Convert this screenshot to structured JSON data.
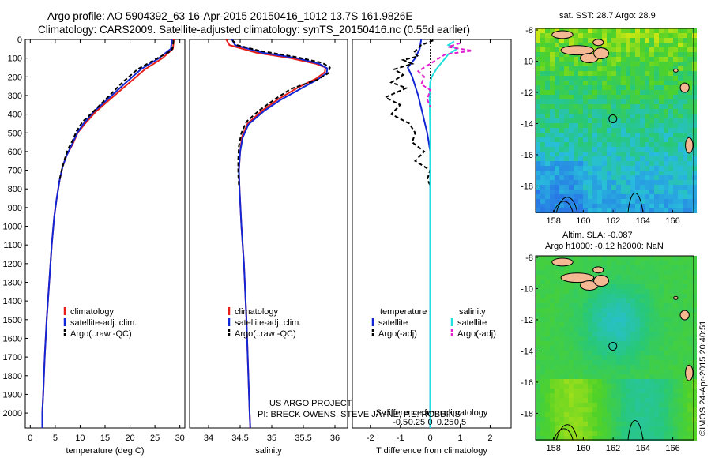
{
  "header": {
    "line1": "Argo profile: AO 5904392_63 16-Apr-2015 20150416_1012 13.7S 161.9826E",
    "line2": "Climatology: CARS2009. Satellite-adjusted climatology: synTS_20150416.nc (0.55d earlier)"
  },
  "colors": {
    "climatology": "#e8201a",
    "satellite": "#1226d6",
    "argo": "#000000",
    "satellite_diff": "#20e0e0",
    "argo_diff": "#e020d0"
  },
  "chart_data": [
    {
      "type": "line",
      "xlabel": "temperature (deg C)",
      "ylabel": "",
      "xlim": [
        -1,
        31
      ],
      "ylim": [
        2080,
        0
      ],
      "xticks": [
        0,
        5,
        10,
        15,
        20,
        25,
        30
      ],
      "yticks": [
        0,
        100,
        200,
        300,
        400,
        500,
        600,
        700,
        800,
        900,
        1000,
        1100,
        1200,
        1300,
        1400,
        1500,
        1600,
        1700,
        1800,
        1900,
        2000
      ],
      "legend": [
        "climatology",
        "satellite-adj. clim.",
        "Argo(..raw -QC)"
      ],
      "legend_position": "bottom-left",
      "series": [
        {
          "name": "climatology",
          "points": [
            [
              28.8,
              0
            ],
            [
              28.6,
              50
            ],
            [
              26.5,
              100
            ],
            [
              23,
              160
            ],
            [
              19.5,
              240
            ],
            [
              16,
              320
            ],
            [
              13,
              390
            ],
            [
              11,
              450
            ],
            [
              9.5,
              500
            ],
            [
              8.5,
              560
            ],
            [
              7.3,
              620
            ],
            [
              6.5,
              680
            ],
            [
              5.9,
              750
            ],
            [
              5.3,
              850
            ],
            [
              4.8,
              950
            ],
            [
              4.3,
              1100
            ],
            [
              3.8,
              1300
            ],
            [
              3.3,
              1500
            ],
            [
              2.9,
              1700
            ],
            [
              2.6,
              1900
            ],
            [
              2.4,
              2000
            ],
            [
              2.4,
              2080
            ]
          ]
        },
        {
          "name": "satellite-adj. clim.",
          "points": [
            [
              28.4,
              0
            ],
            [
              28.2,
              50
            ],
            [
              25.8,
              100
            ],
            [
              22.2,
              160
            ],
            [
              18.8,
              240
            ],
            [
              15.5,
              320
            ],
            [
              12.6,
              390
            ],
            [
              10.7,
              450
            ],
            [
              9.4,
              500
            ],
            [
              8.4,
              560
            ],
            [
              7.3,
              620
            ],
            [
              6.5,
              680
            ],
            [
              5.9,
              750
            ],
            [
              5.3,
              850
            ],
            [
              4.8,
              950
            ],
            [
              4.3,
              1100
            ],
            [
              3.8,
              1300
            ],
            [
              3.3,
              1500
            ],
            [
              2.9,
              1700
            ],
            [
              2.6,
              1900
            ],
            [
              2.4,
              2000
            ],
            [
              2.4,
              2080
            ]
          ]
        },
        {
          "name": "Argo(..raw -QC)",
          "points": [
            [
              28.7,
              5
            ],
            [
              28.6,
              40
            ],
            [
              28.3,
              60
            ],
            [
              25.5,
              100
            ],
            [
              21.5,
              160
            ],
            [
              18.5,
              230
            ],
            [
              15.5,
              310
            ],
            [
              12.5,
              390
            ],
            [
              10.5,
              440
            ],
            [
              9.3,
              490
            ],
            [
              8.5,
              540
            ],
            [
              7.5,
              590
            ],
            [
              6.9,
              640
            ],
            [
              6.3,
              700
            ],
            [
              5.8,
              760
            ]
          ]
        }
      ]
    },
    {
      "type": "line",
      "xlabel": "salinity",
      "ylabel": "",
      "xlim": [
        33.7,
        36.2
      ],
      "ylim": [
        2080,
        0
      ],
      "xticks": [
        34,
        34.5,
        35,
        35.5,
        36
      ],
      "legend": [
        "climatology",
        "satellite-adj. clim.",
        "Argo(..raw -QC)"
      ],
      "legend_position": "bottom-left",
      "annotations": [
        "US ARGO PROJECT",
        "PI: BRECK OWENS, STEVE JAYNE, P.E. ROBBINS"
      ],
      "series": [
        {
          "name": "climatology",
          "points": [
            [
              34.28,
              0
            ],
            [
              34.33,
              30
            ],
            [
              34.75,
              70
            ],
            [
              35.3,
              100
            ],
            [
              35.7,
              130
            ],
            [
              35.85,
              150
            ],
            [
              35.84,
              175
            ],
            [
              35.7,
              210
            ],
            [
              35.4,
              260
            ],
            [
              35.1,
              320
            ],
            [
              34.85,
              380
            ],
            [
              34.62,
              450
            ],
            [
              34.53,
              520
            ],
            [
              34.5,
              600
            ],
            [
              34.48,
              700
            ],
            [
              34.49,
              800
            ],
            [
              34.52,
              1000
            ],
            [
              34.56,
              1200
            ],
            [
              34.6,
              1500
            ],
            [
              34.63,
              1800
            ],
            [
              34.65,
              2000
            ],
            [
              34.66,
              2080
            ]
          ]
        },
        {
          "name": "satellite-adj. clim.",
          "points": [
            [
              34.37,
              0
            ],
            [
              34.42,
              30
            ],
            [
              34.85,
              70
            ],
            [
              35.4,
              100
            ],
            [
              35.75,
              130
            ],
            [
              35.88,
              155
            ],
            [
              35.87,
              180
            ],
            [
              35.72,
              215
            ],
            [
              35.45,
              265
            ],
            [
              35.13,
              325
            ],
            [
              34.87,
              385
            ],
            [
              34.63,
              455
            ],
            [
              34.54,
              525
            ],
            [
              34.5,
              600
            ],
            [
              34.48,
              700
            ],
            [
              34.49,
              800
            ],
            [
              34.52,
              1000
            ],
            [
              34.56,
              1200
            ],
            [
              34.6,
              1500
            ],
            [
              34.63,
              1800
            ],
            [
              34.65,
              2000
            ],
            [
              34.66,
              2080
            ]
          ]
        },
        {
          "name": "Argo(..raw -QC)",
          "points": [
            [
              34.38,
              5
            ],
            [
              34.45,
              30
            ],
            [
              34.8,
              60
            ],
            [
              35.4,
              95
            ],
            [
              35.8,
              125
            ],
            [
              35.92,
              150
            ],
            [
              35.9,
              180
            ],
            [
              35.72,
              215
            ],
            [
              35.3,
              265
            ],
            [
              35.05,
              320
            ],
            [
              34.8,
              380
            ],
            [
              34.6,
              440
            ],
            [
              34.52,
              500
            ],
            [
              34.48,
              570
            ],
            [
              34.47,
              640
            ],
            [
              34.47,
              720
            ],
            [
              34.48,
              780
            ]
          ]
        }
      ]
    },
    {
      "type": "line",
      "xlabel": "T difference from climatology",
      "ylabel": "",
      "xlim": [
        -2.6,
        2.7
      ],
      "ylim": [
        2080,
        0
      ],
      "xticks": [
        -2,
        -1,
        0,
        1,
        2
      ],
      "secondary_xlabel": "S difference from climatology",
      "secondary_xticks": [
        -0.5,
        -0.25,
        0,
        0.25,
        0.5
      ],
      "legend_temperature": [
        "temperature",
        "satellite",
        "Argo(-adj)"
      ],
      "legend_salinity": [
        "salinity",
        "satellite",
        "Argo(-adj)"
      ],
      "legend_position": "bottom-left",
      "zero_line": true,
      "series": [
        {
          "name": "satellite",
          "points": [
            [
              -0.3,
              0
            ],
            [
              -0.35,
              50
            ],
            [
              -0.5,
              100
            ],
            [
              -0.75,
              150
            ],
            [
              -0.6,
              200
            ],
            [
              -0.4,
              300
            ],
            [
              -0.25,
              400
            ],
            [
              -0.1,
              500
            ],
            [
              0,
              600
            ],
            [
              0,
              800
            ],
            [
              0,
              2080
            ]
          ]
        },
        {
          "name": "Argo(-adj)",
          "points": [
            [
              0.1,
              5
            ],
            [
              -0.3,
              30
            ],
            [
              -0.55,
              70
            ],
            [
              -0.4,
              90
            ],
            [
              -0.9,
              110
            ],
            [
              -0.6,
              130
            ],
            [
              -1.2,
              160
            ],
            [
              -0.9,
              190
            ],
            [
              -1.3,
              230
            ],
            [
              -0.8,
              260
            ],
            [
              -1.5,
              310
            ],
            [
              -1.0,
              350
            ],
            [
              -1.3,
              400
            ],
            [
              -0.7,
              450
            ],
            [
              -0.5,
              500
            ],
            [
              -0.6,
              550
            ],
            [
              -0.2,
              600
            ],
            [
              -0.5,
              650
            ],
            [
              0,
              700
            ],
            [
              -0.1,
              750
            ],
            [
              0,
              780
            ]
          ]
        },
        {
          "name": "satellite",
          "points": [
            [
              0.8,
              10
            ],
            [
              0.6,
              30
            ],
            [
              0.9,
              50
            ],
            [
              0.6,
              80
            ],
            [
              0.4,
              120
            ],
            [
              0.2,
              160
            ],
            [
              0.05,
              200
            ],
            [
              0,
              230
            ],
            [
              -0.02,
              300
            ],
            [
              0,
              500
            ],
            [
              0,
              2080
            ]
          ]
        },
        {
          "name": "Argo(-adj)",
          "points": [
            [
              1.0,
              20
            ],
            [
              0.6,
              40
            ],
            [
              1.4,
              60
            ],
            [
              0.5,
              80
            ],
            [
              0.2,
              110
            ],
            [
              -0.2,
              150
            ],
            [
              -0.4,
              170
            ],
            [
              -0.2,
              200
            ],
            [
              -0.3,
              240
            ],
            [
              0,
              270
            ],
            [
              -0.1,
              320
            ],
            [
              0,
              360
            ]
          ]
        }
      ]
    },
    {
      "type": "heatmap",
      "title": "sat. SST: 28.7  Argo: 28.9",
      "xlim": [
        156.8,
        167.4
      ],
      "ylim": [
        -19.7,
        -7.9
      ],
      "xticks": [
        158,
        160,
        162,
        164,
        166
      ],
      "yticks": [
        -8,
        -10,
        -12,
        -14,
        -16,
        -18
      ],
      "marker": [
        161.98,
        -13.7
      ]
    },
    {
      "type": "heatmap",
      "title": "Altim. SLA: -0.087",
      "subtitle": "Argo h1000: -0.12  h2000: NaN",
      "xlim": [
        156.8,
        167.4
      ],
      "ylim": [
        -19.7,
        -7.9
      ],
      "xticks": [
        158,
        160,
        162,
        164,
        166
      ],
      "yticks": [
        -8,
        -10,
        -12,
        -14,
        -16,
        -18
      ],
      "marker": [
        161.98,
        -13.7
      ]
    }
  ],
  "footer": {
    "project": "US ARGO PROJECT",
    "pi": "PI: BRECK OWENS, STEVE JAYNE, P.E. ROBBINS",
    "stamp": "©IMOS 24-Apr-2015 20:40:51"
  }
}
